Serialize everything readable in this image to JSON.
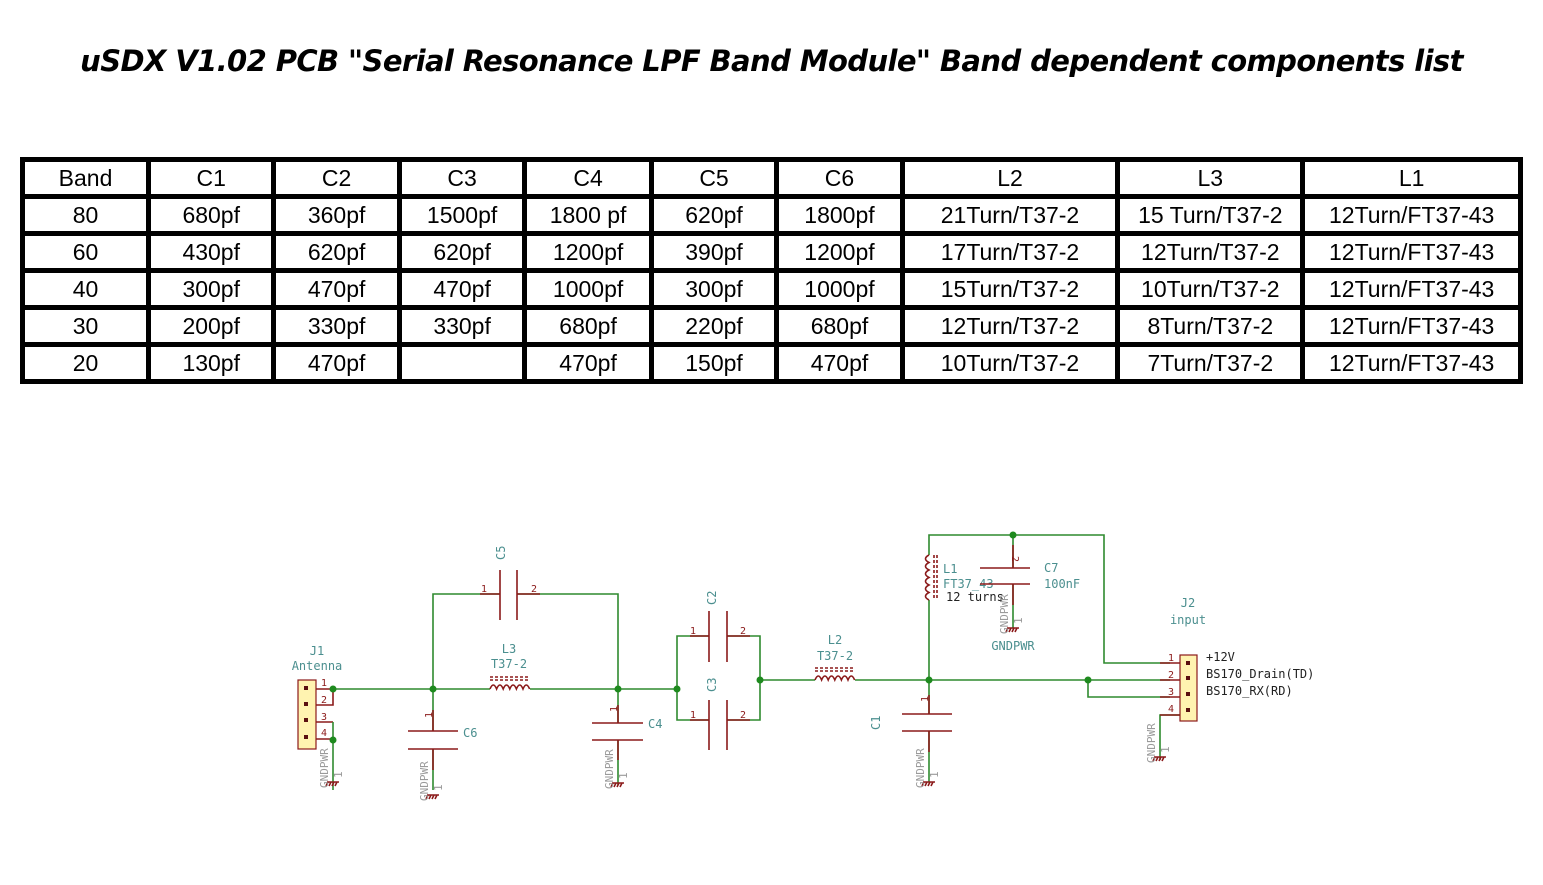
{
  "title": "uSDX V1.02 PCB \"Serial Resonance LPF Band Module\" Band dependent components list",
  "table": {
    "headers": [
      "Band",
      "C1",
      "C2",
      "C3",
      "C4",
      "C5",
      "C6",
      "L2",
      "L3",
      "L1"
    ],
    "rows": [
      [
        "80",
        "680pf",
        "360pf",
        "1500pf",
        "1800 pf",
        "620pf",
        "1800pf",
        "21Turn/T37-2",
        "15 Turn/T37-2",
        "12Turn/FT37-43"
      ],
      [
        "60",
        "430pf",
        "620pf",
        "620pf",
        "1200pf",
        "390pf",
        "1200pf",
        "17Turn/T37-2",
        "12Turn/T37-2",
        "12Turn/FT37-43"
      ],
      [
        "40",
        "300pf",
        "470pf",
        "470pf",
        "1000pf",
        "300pf",
        "1000pf",
        "15Turn/T37-2",
        "10Turn/T37-2",
        "12Turn/FT37-43"
      ],
      [
        "30",
        "200pf",
        "330pf",
        "330pf",
        "680pf",
        "220pf",
        "680pf",
        "12Turn/T37-2",
        "8Turn/T37-2",
        "12Turn/FT37-43"
      ],
      [
        "20",
        "130pf",
        "470pf",
        "",
        "470pf",
        "150pf",
        "470pf",
        "10Turn/T37-2",
        "7Turn/T37-2",
        "12Turn/FT37-43"
      ]
    ]
  },
  "schematic": {
    "j1": {
      "ref": "J1",
      "value": "Antenna",
      "pins": [
        "1",
        "2",
        "3",
        "4"
      ]
    },
    "l3": {
      "ref": "L3",
      "value": "T37-2"
    },
    "c5": {
      "ref": "C5",
      "pins": [
        "1",
        "2"
      ]
    },
    "c6": {
      "ref": "C6",
      "pins": [
        "1"
      ]
    },
    "c4": {
      "ref": "C4",
      "pins": [
        "1"
      ]
    },
    "c2": {
      "ref": "C2",
      "pins": [
        "1",
        "2"
      ]
    },
    "c3": {
      "ref": "C3",
      "pins": [
        "1",
        "2"
      ]
    },
    "l2": {
      "ref": "L2",
      "value": "T37-2"
    },
    "l1": {
      "ref": "L1",
      "value": "FT37_43",
      "note": "12 turns"
    },
    "c7": {
      "ref": "C7",
      "value": "100nF",
      "pins": [
        "2"
      ]
    },
    "c1": {
      "ref": "C1",
      "pins": [
        "1"
      ]
    },
    "j2": {
      "ref": "J2",
      "value": "input",
      "pins": [
        "1",
        "2",
        "3",
        "4"
      ],
      "signals": [
        "+12V",
        "BS170_Drain(TD)",
        "BS170_RX(RD)"
      ]
    },
    "gnd": "GNDPWR",
    "gnd_pin": "1",
    "colors": {
      "wire": "#2f8a2f",
      "component": "#8b1a1a",
      "label": "#4b8f8f",
      "junction": "#1e8a1e"
    }
  }
}
